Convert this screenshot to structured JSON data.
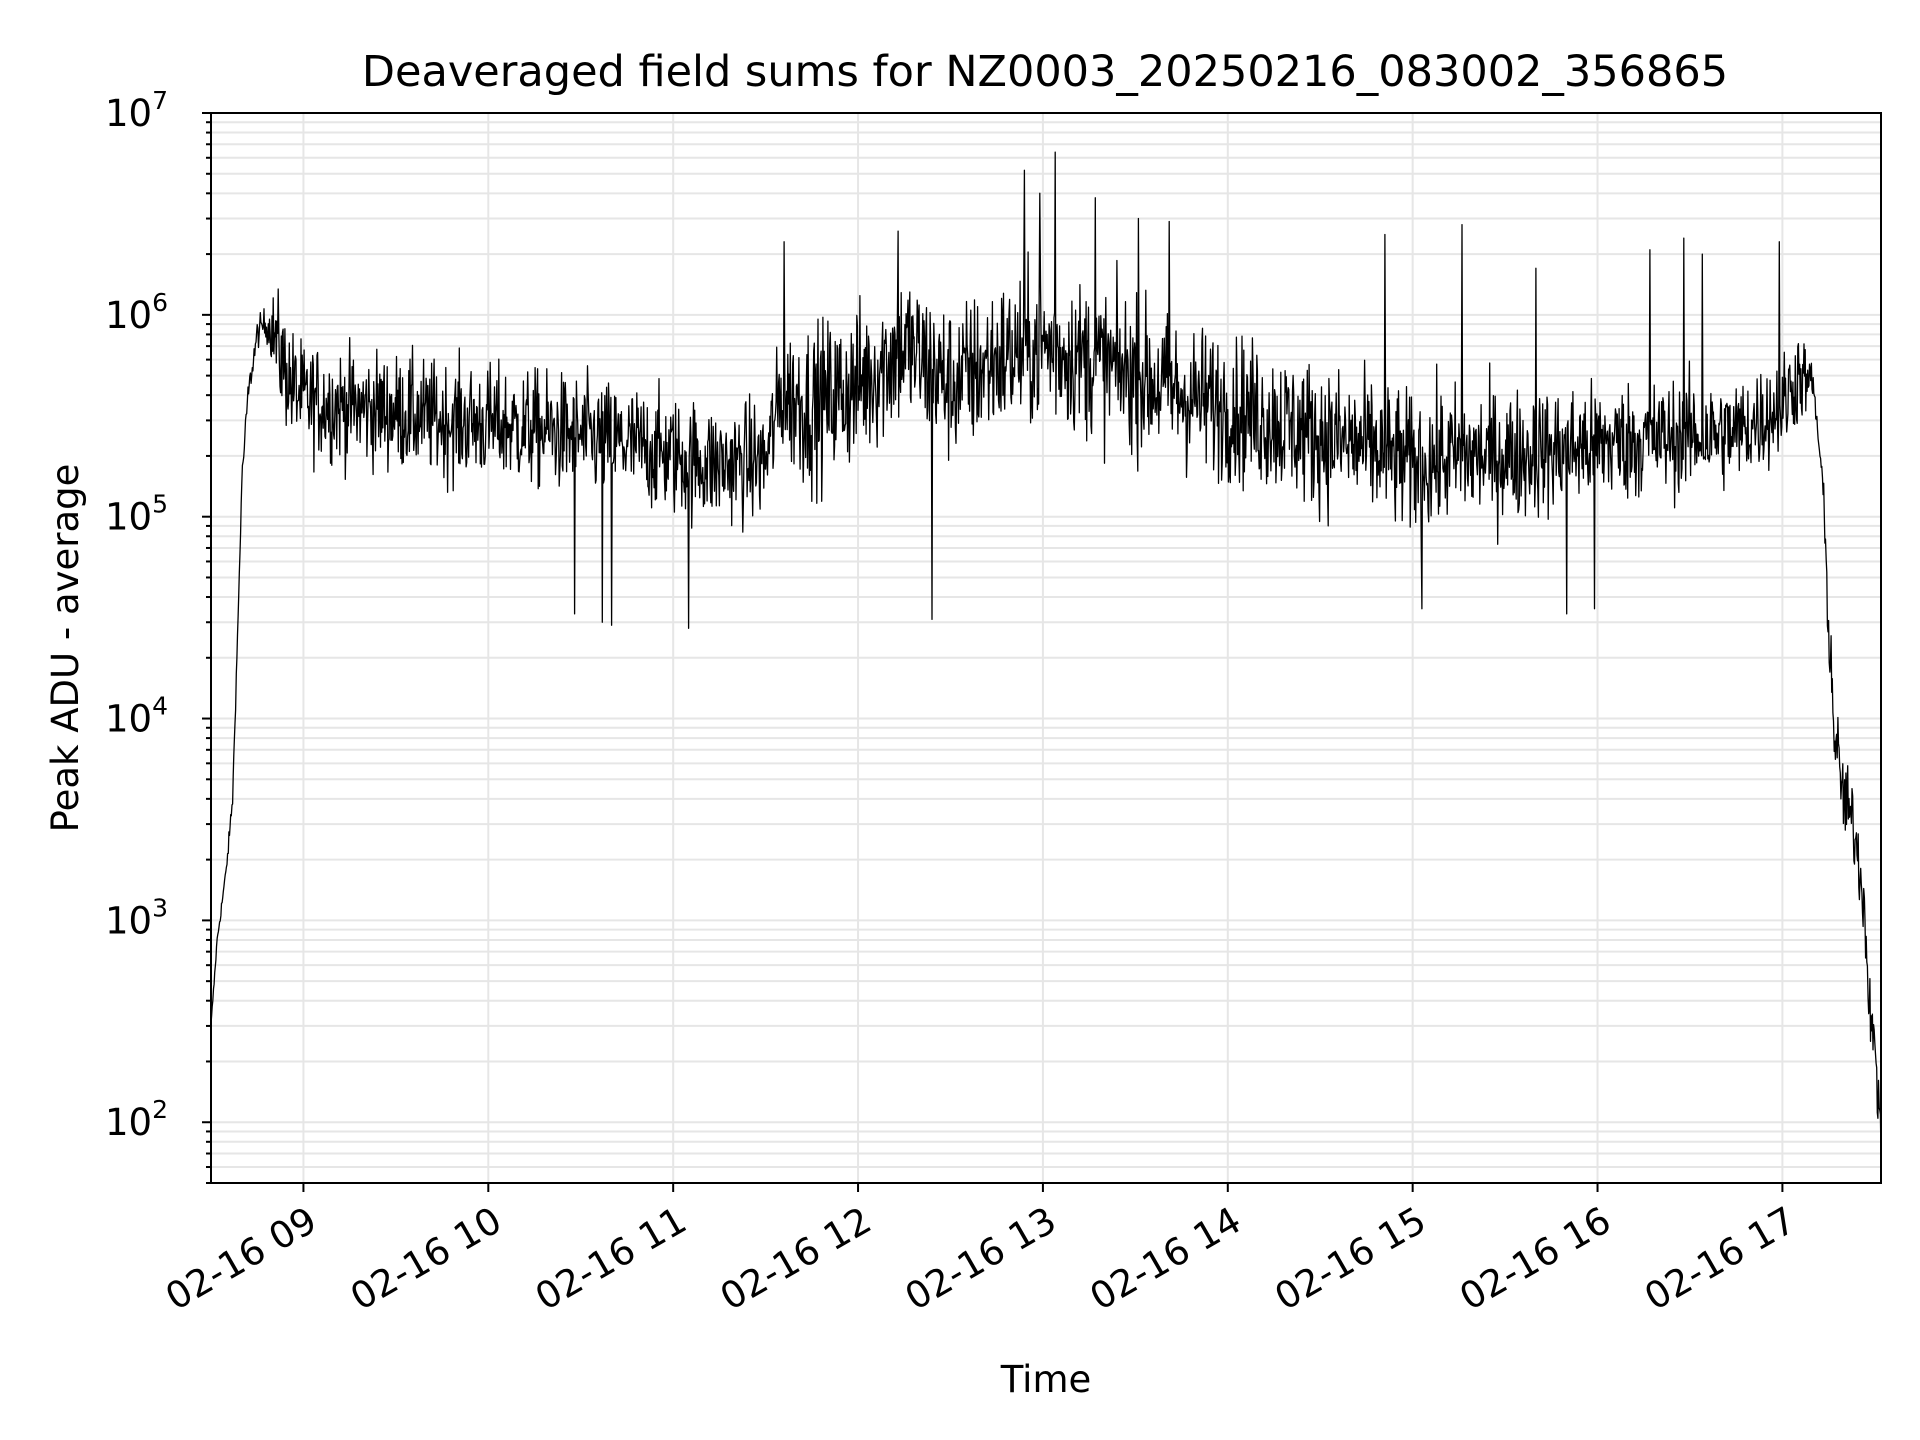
{
  "chart_data": {
    "type": "line",
    "title": "Deaveraged field sums for NZ0003_20250216_083002_356865",
    "xlabel": "Time",
    "ylabel": "Peak ADU - average",
    "yscale": "log",
    "ylim": [
      50,
      10000000
    ],
    "xlim": [
      "2025-02-16 08:30",
      "2025-02-16 17:32"
    ],
    "grid": true,
    "line_color": "#000000",
    "grid_color": "#e6e6e6",
    "x_ticks": [
      {
        "value": "2025-02-16 09:00",
        "label": "02-16 09"
      },
      {
        "value": "2025-02-16 10:00",
        "label": "02-16 10"
      },
      {
        "value": "2025-02-16 11:00",
        "label": "02-16 11"
      },
      {
        "value": "2025-02-16 12:00",
        "label": "02-16 12"
      },
      {
        "value": "2025-02-16 13:00",
        "label": "02-16 13"
      },
      {
        "value": "2025-02-16 14:00",
        "label": "02-16 14"
      },
      {
        "value": "2025-02-16 15:00",
        "label": "02-16 15"
      },
      {
        "value": "2025-02-16 16:00",
        "label": "02-16 16"
      },
      {
        "value": "2025-02-16 17:00",
        "label": "02-16 17"
      }
    ],
    "y_ticks": [
      {
        "value": 100,
        "base": "10",
        "exp": "2"
      },
      {
        "value": 1000,
        "base": "10",
        "exp": "3"
      },
      {
        "value": 10000,
        "base": "10",
        "exp": "4"
      },
      {
        "value": 100000,
        "base": "10",
        "exp": "5"
      },
      {
        "value": 1000000,
        "base": "10",
        "exp": "6"
      },
      {
        "value": 10000000,
        "base": "10",
        "exp": "7"
      }
    ],
    "series": [
      {
        "points": [
          [
            "2025-02-16 08:30",
            300
          ],
          [
            "2025-02-16 08:32",
            800
          ],
          [
            "2025-02-16 08:35",
            1800
          ],
          [
            "2025-02-16 08:37",
            4000
          ],
          [
            "2025-02-16 08:39",
            40000
          ],
          [
            "2025-02-16 08:40",
            150000
          ],
          [
            "2025-02-16 08:42",
            400000
          ],
          [
            "2025-02-16 08:45",
            800000
          ],
          [
            "2025-02-16 08:47",
            900000
          ],
          [
            "2025-02-16 08:50",
            850000
          ],
          [
            "2025-02-16 08:53",
            600000
          ],
          [
            "2025-02-16 08:56",
            450000
          ],
          [
            "2025-02-16 09:00",
            380000
          ],
          [
            "2025-02-16 09:15",
            350000
          ],
          [
            "2025-02-16 09:30",
            330000
          ],
          [
            "2025-02-16 09:45",
            300000
          ],
          [
            "2025-02-16 10:00",
            290000
          ],
          [
            "2025-02-16 10:15",
            270000
          ],
          [
            "2025-02-16 10:30",
            250000
          ],
          [
            "2025-02-16 10:45",
            230000
          ],
          [
            "2025-02-16 11:00",
            200000
          ],
          [
            "2025-02-16 11:15",
            180000
          ],
          [
            "2025-02-16 11:30",
            190000
          ],
          [
            "2025-02-16 11:35",
            400000
          ],
          [
            "2025-02-16 11:45",
            350000
          ],
          [
            "2025-02-16 12:00",
            450000
          ],
          [
            "2025-02-16 12:15",
            700000
          ],
          [
            "2025-02-16 12:30",
            450000
          ],
          [
            "2025-02-16 12:45",
            600000
          ],
          [
            "2025-02-16 13:00",
            700000
          ],
          [
            "2025-02-16 13:15",
            600000
          ],
          [
            "2025-02-16 13:30",
            500000
          ],
          [
            "2025-02-16 13:45",
            400000
          ],
          [
            "2025-02-16 14:00",
            350000
          ],
          [
            "2025-02-16 14:15",
            300000
          ],
          [
            "2025-02-16 14:30",
            250000
          ],
          [
            "2025-02-16 14:45",
            220000
          ],
          [
            "2025-02-16 15:00",
            180000
          ],
          [
            "2025-02-16 15:15",
            200000
          ],
          [
            "2025-02-16 15:30",
            200000
          ],
          [
            "2025-02-16 15:45",
            210000
          ],
          [
            "2025-02-16 16:00",
            230000
          ],
          [
            "2025-02-16 16:15",
            240000
          ],
          [
            "2025-02-16 16:30",
            250000
          ],
          [
            "2025-02-16 16:45",
            260000
          ],
          [
            "2025-02-16 17:00",
            350000
          ],
          [
            "2025-02-16 17:05",
            500000
          ],
          [
            "2025-02-16 17:10",
            450000
          ],
          [
            "2025-02-16 17:13",
            150000
          ],
          [
            "2025-02-16 17:15",
            30000
          ],
          [
            "2025-02-16 17:17",
            8000
          ],
          [
            "2025-02-16 17:20",
            4000
          ],
          [
            "2025-02-16 17:23",
            3000
          ],
          [
            "2025-02-16 17:26",
            1500
          ],
          [
            "2025-02-16 17:28",
            500
          ],
          [
            "2025-02-16 17:30",
            200
          ],
          [
            "2025-02-16 17:32",
            100
          ]
        ],
        "noise_log10": [
          [
            "2025-02-16 08:30",
            0.02
          ],
          [
            "2025-02-16 08:48",
            0.08
          ],
          [
            "2025-02-16 08:52",
            0.28
          ],
          [
            "2025-02-16 11:35",
            0.3
          ],
          [
            "2025-02-16 11:40",
            0.4
          ],
          [
            "2025-02-16 15:00",
            0.35
          ],
          [
            "2025-02-16 17:05",
            0.25
          ],
          [
            "2025-02-16 17:12",
            0.05
          ],
          [
            "2025-02-16 17:15",
            0.2
          ],
          [
            "2025-02-16 17:32",
            0.2
          ]
        ],
        "spikes": [
          [
            "2025-02-16 11:36",
            2300000
          ],
          [
            "2025-02-16 12:13",
            2600000
          ],
          [
            "2025-02-16 12:54",
            5200000
          ],
          [
            "2025-02-16 12:59",
            4000000
          ],
          [
            "2025-02-16 13:04",
            6400000
          ],
          [
            "2025-02-16 13:17",
            3800000
          ],
          [
            "2025-02-16 13:31",
            3000000
          ],
          [
            "2025-02-16 13:41",
            2900000
          ],
          [
            "2025-02-16 14:51",
            2500000
          ],
          [
            "2025-02-16 15:16",
            2800000
          ],
          [
            "2025-02-16 15:40",
            1700000
          ],
          [
            "2025-02-16 16:17",
            2100000
          ],
          [
            "2025-02-16 16:28",
            2400000
          ],
          [
            "2025-02-16 16:34",
            2000000
          ],
          [
            "2025-02-16 16:59",
            2300000
          ]
        ],
        "dips": [
          [
            "2025-02-16 10:28",
            33000
          ],
          [
            "2025-02-16 10:37",
            30000
          ],
          [
            "2025-02-16 10:40",
            29000
          ],
          [
            "2025-02-16 11:05",
            28000
          ],
          [
            "2025-02-16 12:24",
            31000
          ],
          [
            "2025-02-16 15:03",
            35000
          ],
          [
            "2025-02-16 15:50",
            33000
          ],
          [
            "2025-02-16 15:59",
            35000
          ]
        ],
        "sample_minutes": 0.2
      }
    ]
  }
}
